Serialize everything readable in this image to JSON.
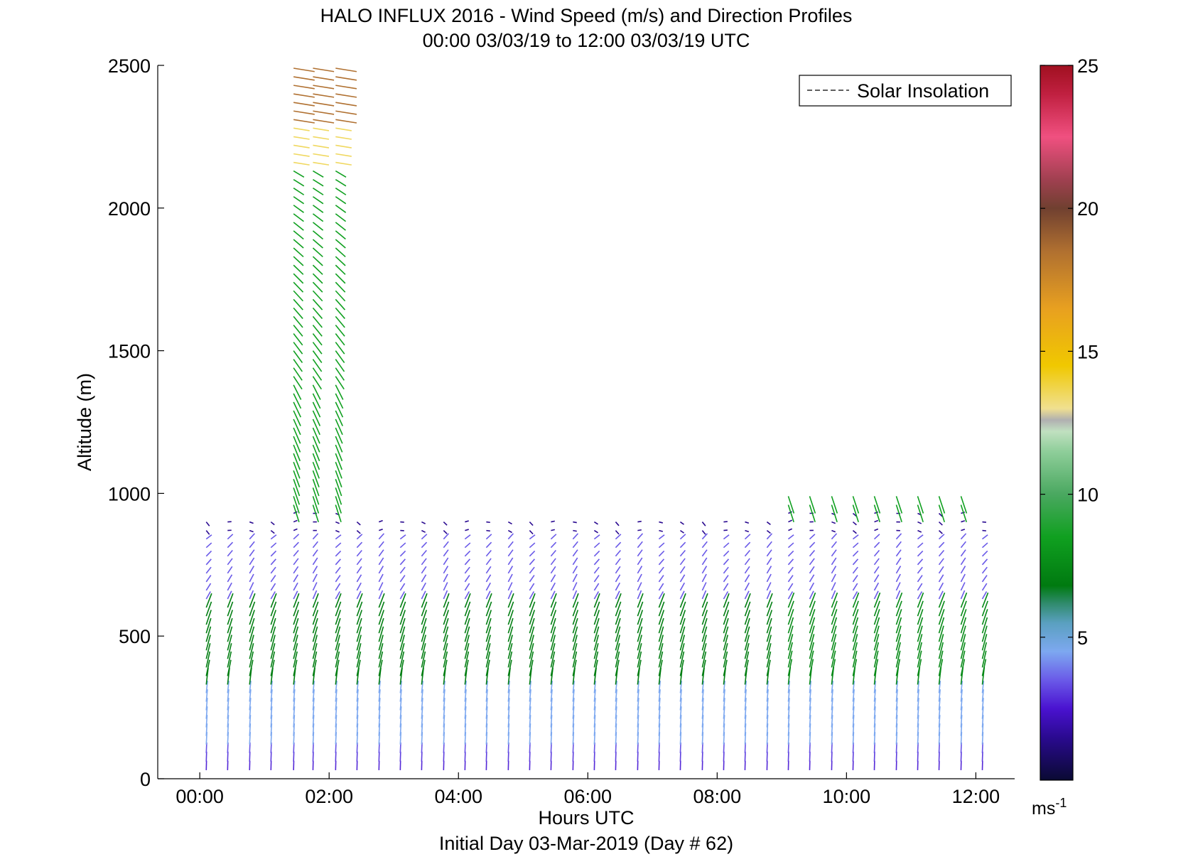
{
  "chart_data": {
    "type": "quiver",
    "title": "HALO INFLUX 2016 - Wind Speed (m/s) and Direction Profiles",
    "subtitle": "00:00 03/03/19 to 12:00 03/03/19  UTC",
    "xlabel": "Hours UTC",
    "footer": "Initial Day 03-Mar-2019 (Day # 62)",
    "ylabel": "Altitude (m)",
    "xlim_hours": [
      -0.65,
      12.6
    ],
    "ylim": [
      0,
      2500
    ],
    "x_ticks": [
      {
        "hour": 0,
        "label": "00:00"
      },
      {
        "hour": 2,
        "label": "02:00"
      },
      {
        "hour": 4,
        "label": "04:00"
      },
      {
        "hour": 6,
        "label": "06:00"
      },
      {
        "hour": 8,
        "label": "08:00"
      },
      {
        "hour": 10,
        "label": "10:00"
      },
      {
        "hour": 12,
        "label": "12:00"
      }
    ],
    "y_ticks": [
      0,
      500,
      1000,
      1500,
      2000,
      2500
    ],
    "y_tick_labels": [
      "0",
      "500",
      "1000",
      "1500",
      "2000",
      "2500"
    ],
    "legend": {
      "entries": [
        "Solar Insolation"
      ],
      "line_style": "dashed",
      "placement": "top-right"
    },
    "colorbar": {
      "range": [
        0,
        25
      ],
      "ticks": [
        5,
        10,
        15,
        20,
        25
      ],
      "tick_labels": [
        "5",
        "10",
        "15",
        "20",
        "25"
      ],
      "unit_base": "ms",
      "unit_exp": "-1",
      "stops": [
        {
          "v": 0,
          "c": "#0a0a33"
        },
        {
          "v": 1.5,
          "c": "#2a0a90"
        },
        {
          "v": 2.5,
          "c": "#4a12d0"
        },
        {
          "v": 3.5,
          "c": "#6a5ae8"
        },
        {
          "v": 4.5,
          "c": "#7da8f0"
        },
        {
          "v": 5.5,
          "c": "#5aa0c0"
        },
        {
          "v": 6.2,
          "c": "#2e8a6a"
        },
        {
          "v": 6.8,
          "c": "#007a10"
        },
        {
          "v": 8.5,
          "c": "#10a020"
        },
        {
          "v": 10,
          "c": "#4aa860"
        },
        {
          "v": 11.5,
          "c": "#8fce9a"
        },
        {
          "v": 12.2,
          "c": "#c0e0c0"
        },
        {
          "v": 12.6,
          "c": "#b0b0b0"
        },
        {
          "v": 13,
          "c": "#f0e090"
        },
        {
          "v": 14.5,
          "c": "#f0c800"
        },
        {
          "v": 16.5,
          "c": "#e8a020"
        },
        {
          "v": 18.5,
          "c": "#b07030"
        },
        {
          "v": 20,
          "c": "#704030"
        },
        {
          "v": 21,
          "c": "#a04050"
        },
        {
          "v": 22.5,
          "c": "#f05080"
        },
        {
          "v": 24,
          "c": "#c02040"
        },
        {
          "v": 25,
          "c": "#a01020"
        }
      ]
    },
    "wind_profiles": {
      "times_hours": [
        0.1,
        0.43,
        0.77,
        1.1,
        1.45,
        1.75,
        2.1,
        2.43,
        2.77,
        3.1,
        3.43,
        3.77,
        4.1,
        4.43,
        4.77,
        5.1,
        5.43,
        5.77,
        6.1,
        6.43,
        6.77,
        7.1,
        7.43,
        7.77,
        8.1,
        8.43,
        8.77,
        9.1,
        9.43,
        9.77,
        10.1,
        10.43,
        10.77,
        11.1,
        11.43,
        11.77,
        12.1
      ],
      "altitude_step_m": 30,
      "approx_speed_ms": {
        "surface_0_100m": 2.5,
        "lower_150_300m": 4.5,
        "low_jet_350_600m": 7.0,
        "mid_600_850m": 3.5,
        "inversion_850_950m": 1.5,
        "upper_1000_2150m": 8.5,
        "upper_2150_2300m": 13.5,
        "upper_2300_2500m": 18.5
      },
      "upper_profiles_to_2500m_hours": [
        1.5,
        1.75,
        2.0
      ],
      "note_direction": "southerly/southwesterly near surface veering to westerly aloft"
    }
  }
}
